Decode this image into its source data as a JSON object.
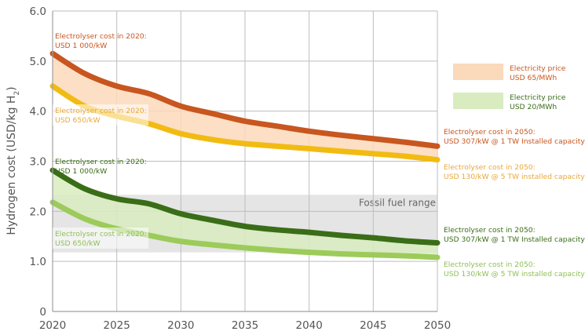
{
  "chart_data": {
    "type": "line",
    "title": "",
    "xlabel": "",
    "ylabel": "Hydrogen cost (USD/kg H2)",
    "ylabel_main": "Hydrogen cost (USD/kg H",
    "ylabel_sub": "2",
    "ylabel_end": ")",
    "xlim": [
      2020,
      2050
    ],
    "ylim": [
      0,
      6
    ],
    "x_ticks": [
      2020,
      2025,
      2030,
      2035,
      2040,
      2045,
      2050
    ],
    "x_tick_labels": [
      "2020",
      "2025",
      "2030",
      "2035",
      "2040",
      "2045",
      "2050"
    ],
    "y_ticks": [
      0,
      1,
      2,
      3,
      4,
      5,
      6
    ],
    "y_tick_labels": [
      "0",
      "1.0",
      "2.0",
      "3.0",
      "4.0",
      "5.0",
      "6.0"
    ],
    "grid": true,
    "x": [
      2020,
      2022.5,
      2025,
      2027.5,
      2030,
      2032.5,
      2035,
      2037.5,
      2040,
      2042.5,
      2045,
      2047.5,
      2050
    ],
    "series": [
      {
        "name": "Electricity USD 65/MWh, electrolyser USD 1 000/kW (2020) to USD 307/kW @ 1 TW",
        "color": "#c8561f",
        "values": [
          5.15,
          4.75,
          4.5,
          4.35,
          4.1,
          3.95,
          3.8,
          3.7,
          3.6,
          3.52,
          3.45,
          3.38,
          3.3
        ]
      },
      {
        "name": "Electricity USD 65/MWh, electrolyser USD 650/kW (2020) to USD 130/kW @ 5 TW",
        "color": "#f2bb12",
        "values": [
          4.5,
          4.1,
          3.9,
          3.75,
          3.55,
          3.43,
          3.35,
          3.3,
          3.25,
          3.2,
          3.15,
          3.1,
          3.03
        ]
      },
      {
        "name": "Electricity USD 20/MWh, electrolyser USD 1 000/kW (2020) to USD 307/kW @ 1 TW",
        "color": "#3a6d17",
        "values": [
          2.82,
          2.45,
          2.25,
          2.15,
          1.95,
          1.82,
          1.7,
          1.63,
          1.58,
          1.52,
          1.47,
          1.41,
          1.37
        ]
      },
      {
        "name": "Electricity USD 20/MWh, electrolyser USD 650/kW (2020) to USD 130/kW @ 5 TW",
        "color": "#9ccb5a",
        "values": [
          2.18,
          1.85,
          1.65,
          1.52,
          1.4,
          1.33,
          1.27,
          1.22,
          1.18,
          1.15,
          1.13,
          1.11,
          1.08
        ]
      }
    ],
    "bands": [
      {
        "name": "Electricity price USD 65/MWh",
        "between": [
          0,
          1
        ],
        "color": "#fbd9bb"
      },
      {
        "name": "Electricity price USD 20/MWh",
        "between": [
          2,
          3
        ],
        "color": "#d8ecc0"
      }
    ],
    "fossil_range": {
      "label": "Fossil fuel range",
      "low": 1.18,
      "high": 2.33,
      "color": "#dcdcdc"
    },
    "legend": {
      "placement": "right",
      "items": [
        {
          "line1": "Electricity price",
          "line2": "USD 65/MWh",
          "swatch": "#fbd9bb",
          "text_color": "#c8561f"
        },
        {
          "line1": "Electricity price",
          "line2": "USD 20/MWh",
          "swatch": "#d8ecc0",
          "text_color": "#3a6d17"
        }
      ]
    },
    "annotations": [
      {
        "id": "orange-2020",
        "line1": "Electrolyser cost in 2020:",
        "line2": "USD 1 000/kW",
        "color": "#c8561f"
      },
      {
        "id": "yellow-2020",
        "line1": "Electrolyser cost in 2020:",
        "line2": "USD 650/kW",
        "color": "#e9a93a"
      },
      {
        "id": "darkgreen-2020",
        "line1": "Electrolyser cost in 2020:",
        "line2": "USD 1 000/kW",
        "color": "#3a6d17"
      },
      {
        "id": "lightgreen-2020",
        "line1": "Electrolyser cost in 2020:",
        "line2": "USD 650/kW",
        "color": "#8fbf55"
      },
      {
        "id": "orange-2050",
        "line1": "Electrolyser cost in 2050:",
        "line2": "USD 307/kW @ 1 TW Installed capacity",
        "color": "#c8561f"
      },
      {
        "id": "yellow-2050",
        "line1": "Electrolyser cost in 2050:",
        "line2": "USD 130/kW @ 5 TW installed capacity",
        "color": "#e9a93a"
      },
      {
        "id": "darkgreen-2050",
        "line1": "Electrolyser cost in 2050:",
        "line2": "USD 307/kW @ 1 TW Installed capacity",
        "color": "#3a6d17"
      },
      {
        "id": "lightgreen-2050",
        "line1": "Electrolyser cost in 2050:",
        "line2": "USD 130/kW @ 5 TW installed capacity",
        "color": "#8fbf55"
      }
    ]
  }
}
